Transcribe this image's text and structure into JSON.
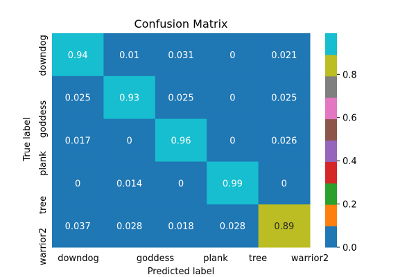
{
  "chart_data": {
    "type": "heatmap",
    "title": "Confusion Matrix",
    "xlabel": "Predicted label",
    "ylabel": "True label",
    "x_tick_labels": [
      "downdog",
      "goddess",
      "plank",
      "tree",
      "warrior2"
    ],
    "y_tick_labels": [
      "downdog",
      "goddess",
      "plank",
      "tree",
      "warrior2"
    ],
    "matrix": [
      [
        0.94,
        0.01,
        0.031,
        0,
        0.021
      ],
      [
        0.025,
        0.93,
        0.025,
        0,
        0.025
      ],
      [
        0.017,
        0,
        0.96,
        0,
        0.026
      ],
      [
        0,
        0.014,
        0,
        0.99,
        0
      ],
      [
        0.037,
        0.028,
        0.018,
        0.028,
        0.89
      ]
    ],
    "cell_labels": [
      [
        "0.94",
        "0.01",
        "0.031",
        "0",
        "0.021"
      ],
      [
        "0.025",
        "0.93",
        "0.025",
        "0",
        "0.025"
      ],
      [
        "0.017",
        "0",
        "0.96",
        "0",
        "0.026"
      ],
      [
        "0",
        "0.014",
        "0",
        "0.99",
        "0"
      ],
      [
        "0.037",
        "0.028",
        "0.018",
        "0.028",
        "0.89"
      ]
    ],
    "colormap": "tab10",
    "colormap_colors": [
      "#1f77b4",
      "#ff7f0e",
      "#2ca02c",
      "#d62728",
      "#9467bd",
      "#8c564b",
      "#e377c2",
      "#7f7f7f",
      "#bcbd22",
      "#17becf"
    ],
    "value_range": [
      0,
      0.99
    ],
    "colorbar_ticks": [
      0.0,
      0.2,
      0.4,
      0.6,
      0.8
    ],
    "colorbar_tick_labels": [
      "0.0",
      "0.2",
      "0.4",
      "0.6",
      "0.8"
    ],
    "grid": false
  }
}
